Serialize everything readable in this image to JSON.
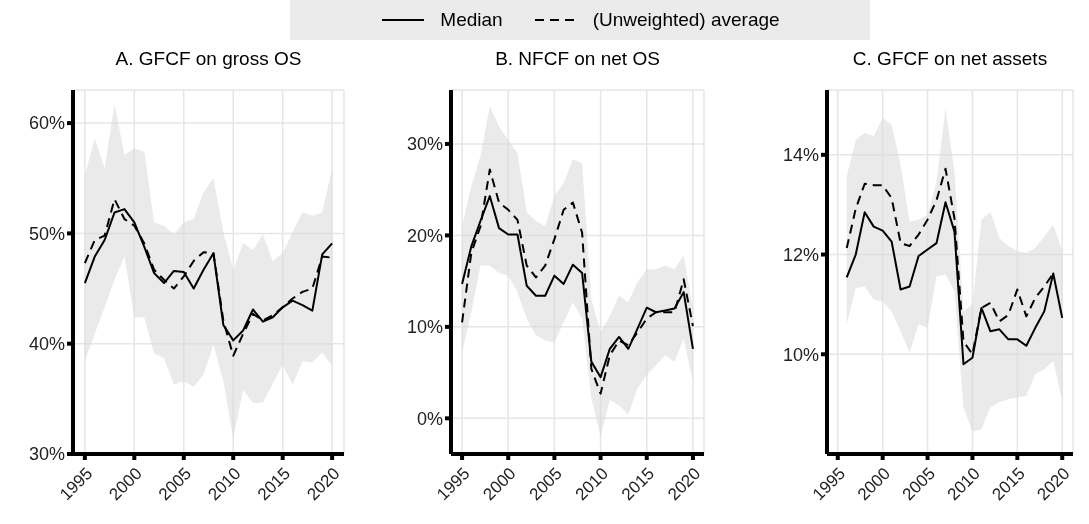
{
  "chart_data": [
    {
      "type": "line",
      "title": "A. GFCF on gross OS",
      "x": [
        1995,
        1996,
        1997,
        1998,
        1999,
        2000,
        2001,
        2002,
        2003,
        2004,
        2005,
        2006,
        2007,
        2008,
        2009,
        2010,
        2011,
        2012,
        2013,
        2014,
        2015,
        2016,
        2017,
        2018,
        2019,
        2020
      ],
      "xlim": [
        1993.8,
        2021.2
      ],
      "xticks": [
        1995,
        2000,
        2005,
        2010,
        2015,
        2020
      ],
      "ylim": [
        30,
        63
      ],
      "yticks": [
        {
          "value": 30,
          "label": "30%"
        },
        {
          "value": 40,
          "label": "40%"
        },
        {
          "value": 50,
          "label": "50%"
        },
        {
          "value": 60,
          "label": "60%"
        }
      ],
      "grid": true,
      "legend": "top",
      "marker": "none",
      "series": [
        {
          "name": "Median",
          "color": "#000000",
          "line_style": "solid",
          "values": [
            45.5,
            47.9,
            49.4,
            51.9,
            52.2,
            51.0,
            48.8,
            46.4,
            45.5,
            46.6,
            46.5,
            45.0,
            46.7,
            48.2,
            41.7,
            40.3,
            41.2,
            43.1,
            42.0,
            42.4,
            43.3,
            43.9,
            43.5,
            43.0,
            48.1,
            49.1
          ],
          "lower": [
            38.4,
            40.9,
            43.3,
            45.8,
            47.9,
            42.4,
            42.4,
            39.1,
            38.7,
            36.3,
            36.6,
            36.1,
            37.2,
            39.9,
            36.6,
            31.4,
            35.8,
            34.6,
            34.7,
            36.4,
            38.1,
            36.3,
            38.4,
            38.3,
            39.2,
            38.0
          ],
          "upper": [
            55.3,
            58.6,
            55.9,
            61.7,
            57.1,
            57.7,
            57.4,
            51.0,
            50.7,
            49.9,
            51.0,
            51.3,
            53.7,
            55.0,
            50.1,
            46.7,
            49.1,
            48.5,
            49.9,
            47.5,
            48.2,
            50.1,
            51.9,
            51.6,
            51.9,
            55.9
          ]
        },
        {
          "name": "(Unweighted) average",
          "color": "#000000",
          "line_style": "dashed",
          "values": [
            47.3,
            49.4,
            49.8,
            53.1,
            51.3,
            50.7,
            49.1,
            46.7,
            45.8,
            45.0,
            46.1,
            47.5,
            48.3,
            48.2,
            42.1,
            38.9,
            40.9,
            42.7,
            42.1,
            42.6,
            43.3,
            44.1,
            44.7,
            45.0,
            47.9,
            47.8
          ]
        }
      ]
    },
    {
      "type": "line",
      "title": "B. NFCF on net OS",
      "x": [
        1995,
        1996,
        1997,
        1998,
        1999,
        2000,
        2001,
        2002,
        2003,
        2004,
        2005,
        2006,
        2007,
        2008,
        2009,
        2010,
        2011,
        2012,
        2013,
        2014,
        2015,
        2016,
        2017,
        2018,
        2019,
        2020
      ],
      "xlim": [
        1993.8,
        2021.2
      ],
      "xticks": [
        1995,
        2000,
        2005,
        2010,
        2015,
        2020
      ],
      "ylim": [
        -3.9,
        35.9
      ],
      "yticks": [
        {
          "value": 0,
          "label": "0%"
        },
        {
          "value": 10,
          "label": "10%"
        },
        {
          "value": 20,
          "label": "20%"
        },
        {
          "value": 30,
          "label": "30%"
        }
      ],
      "grid": true,
      "marker": "none",
      "series": [
        {
          "color": "#000000",
          "line_style": "solid",
          "values": [
            14.7,
            18.8,
            21.6,
            24.3,
            20.8,
            20.1,
            20.1,
            14.5,
            13.4,
            13.4,
            15.6,
            14.7,
            16.8,
            15.9,
            6.2,
            4.5,
            7.6,
            8.9,
            7.6,
            9.8,
            12.1,
            11.6,
            11.8,
            12.0,
            13.8,
            7.6
          ],
          "lower": [
            7.2,
            11.6,
            16.7,
            16.7,
            15.9,
            15.6,
            13.8,
            10.9,
            9.1,
            8.5,
            8.3,
            10.5,
            12.7,
            10.9,
            2.2,
            -2.0,
            2.0,
            1.4,
            0.4,
            3.3,
            4.7,
            5.8,
            6.9,
            6.2,
            8.7,
            4.0
          ],
          "upper": [
            21.0,
            25.4,
            28.7,
            34.1,
            31.9,
            30.4,
            29.0,
            22.5,
            21.6,
            21.0,
            24.3,
            25.7,
            28.3,
            27.9,
            13.0,
            9.4,
            11.2,
            13.4,
            12.7,
            14.9,
            16.3,
            16.3,
            16.7,
            16.3,
            17.8,
            12.0
          ]
        },
        {
          "color": "#000000",
          "line_style": "dashed",
          "values": [
            10.5,
            18.1,
            21.0,
            27.2,
            23.6,
            22.8,
            21.7,
            16.7,
            15.4,
            16.7,
            19.6,
            22.8,
            23.6,
            20.3,
            5.4,
            2.7,
            6.9,
            8.5,
            8.0,
            9.4,
            10.9,
            11.6,
            11.6,
            11.6,
            15.2,
            10.1
          ]
        }
      ]
    },
    {
      "type": "line",
      "title": "C. GFCF on net assets",
      "x": [
        1996,
        1997,
        1998,
        1999,
        2000,
        2001,
        2002,
        2003,
        2004,
        2005,
        2006,
        2007,
        2008,
        2009,
        2010,
        2011,
        2012,
        2013,
        2014,
        2015,
        2016,
        2017,
        2018,
        2019,
        2020
      ],
      "xlim": [
        1993.8,
        2021.2
      ],
      "xticks": [
        1995,
        2000,
        2005,
        2010,
        2015,
        2020
      ],
      "ylim": [
        8.0,
        15.3
      ],
      "yticks": [
        {
          "value": 10,
          "label": "10%"
        },
        {
          "value": 12,
          "label": "12%"
        },
        {
          "value": 14,
          "label": "14%"
        }
      ],
      "grid": true,
      "marker": "none",
      "series": [
        {
          "color": "#000000",
          "line_style": "solid",
          "values": [
            11.54,
            12.0,
            12.85,
            12.56,
            12.48,
            12.26,
            11.3,
            11.36,
            11.97,
            12.1,
            12.23,
            13.05,
            12.46,
            9.8,
            9.93,
            10.93,
            10.46,
            10.5,
            10.3,
            10.3,
            10.17,
            10.53,
            10.86,
            11.62,
            10.73
          ],
          "lower": [
            10.6,
            11.33,
            11.36,
            11.1,
            11.06,
            10.86,
            10.46,
            10.03,
            10.6,
            10.53,
            11.56,
            11.6,
            11.26,
            8.94,
            8.44,
            8.5,
            8.94,
            9.04,
            9.1,
            9.14,
            9.17,
            9.6,
            9.7,
            9.87,
            9.07
          ],
          "upper": [
            13.58,
            14.3,
            14.44,
            14.37,
            14.74,
            14.6,
            13.8,
            12.66,
            12.7,
            12.8,
            13.46,
            14.94,
            13.65,
            10.86,
            11.0,
            12.7,
            12.86,
            12.33,
            12.17,
            12.07,
            12.03,
            12.13,
            12.36,
            12.6,
            12.07
          ]
        },
        {
          "color": "#000000",
          "line_style": "dashed",
          "values": [
            12.13,
            12.92,
            13.42,
            13.39,
            13.39,
            13.13,
            12.23,
            12.17,
            12.4,
            12.7,
            13.09,
            13.72,
            12.72,
            10.26,
            10.0,
            10.93,
            11.03,
            10.66,
            10.79,
            11.3,
            10.76,
            11.13,
            11.36,
            11.62,
            null
          ]
        }
      ]
    }
  ]
}
